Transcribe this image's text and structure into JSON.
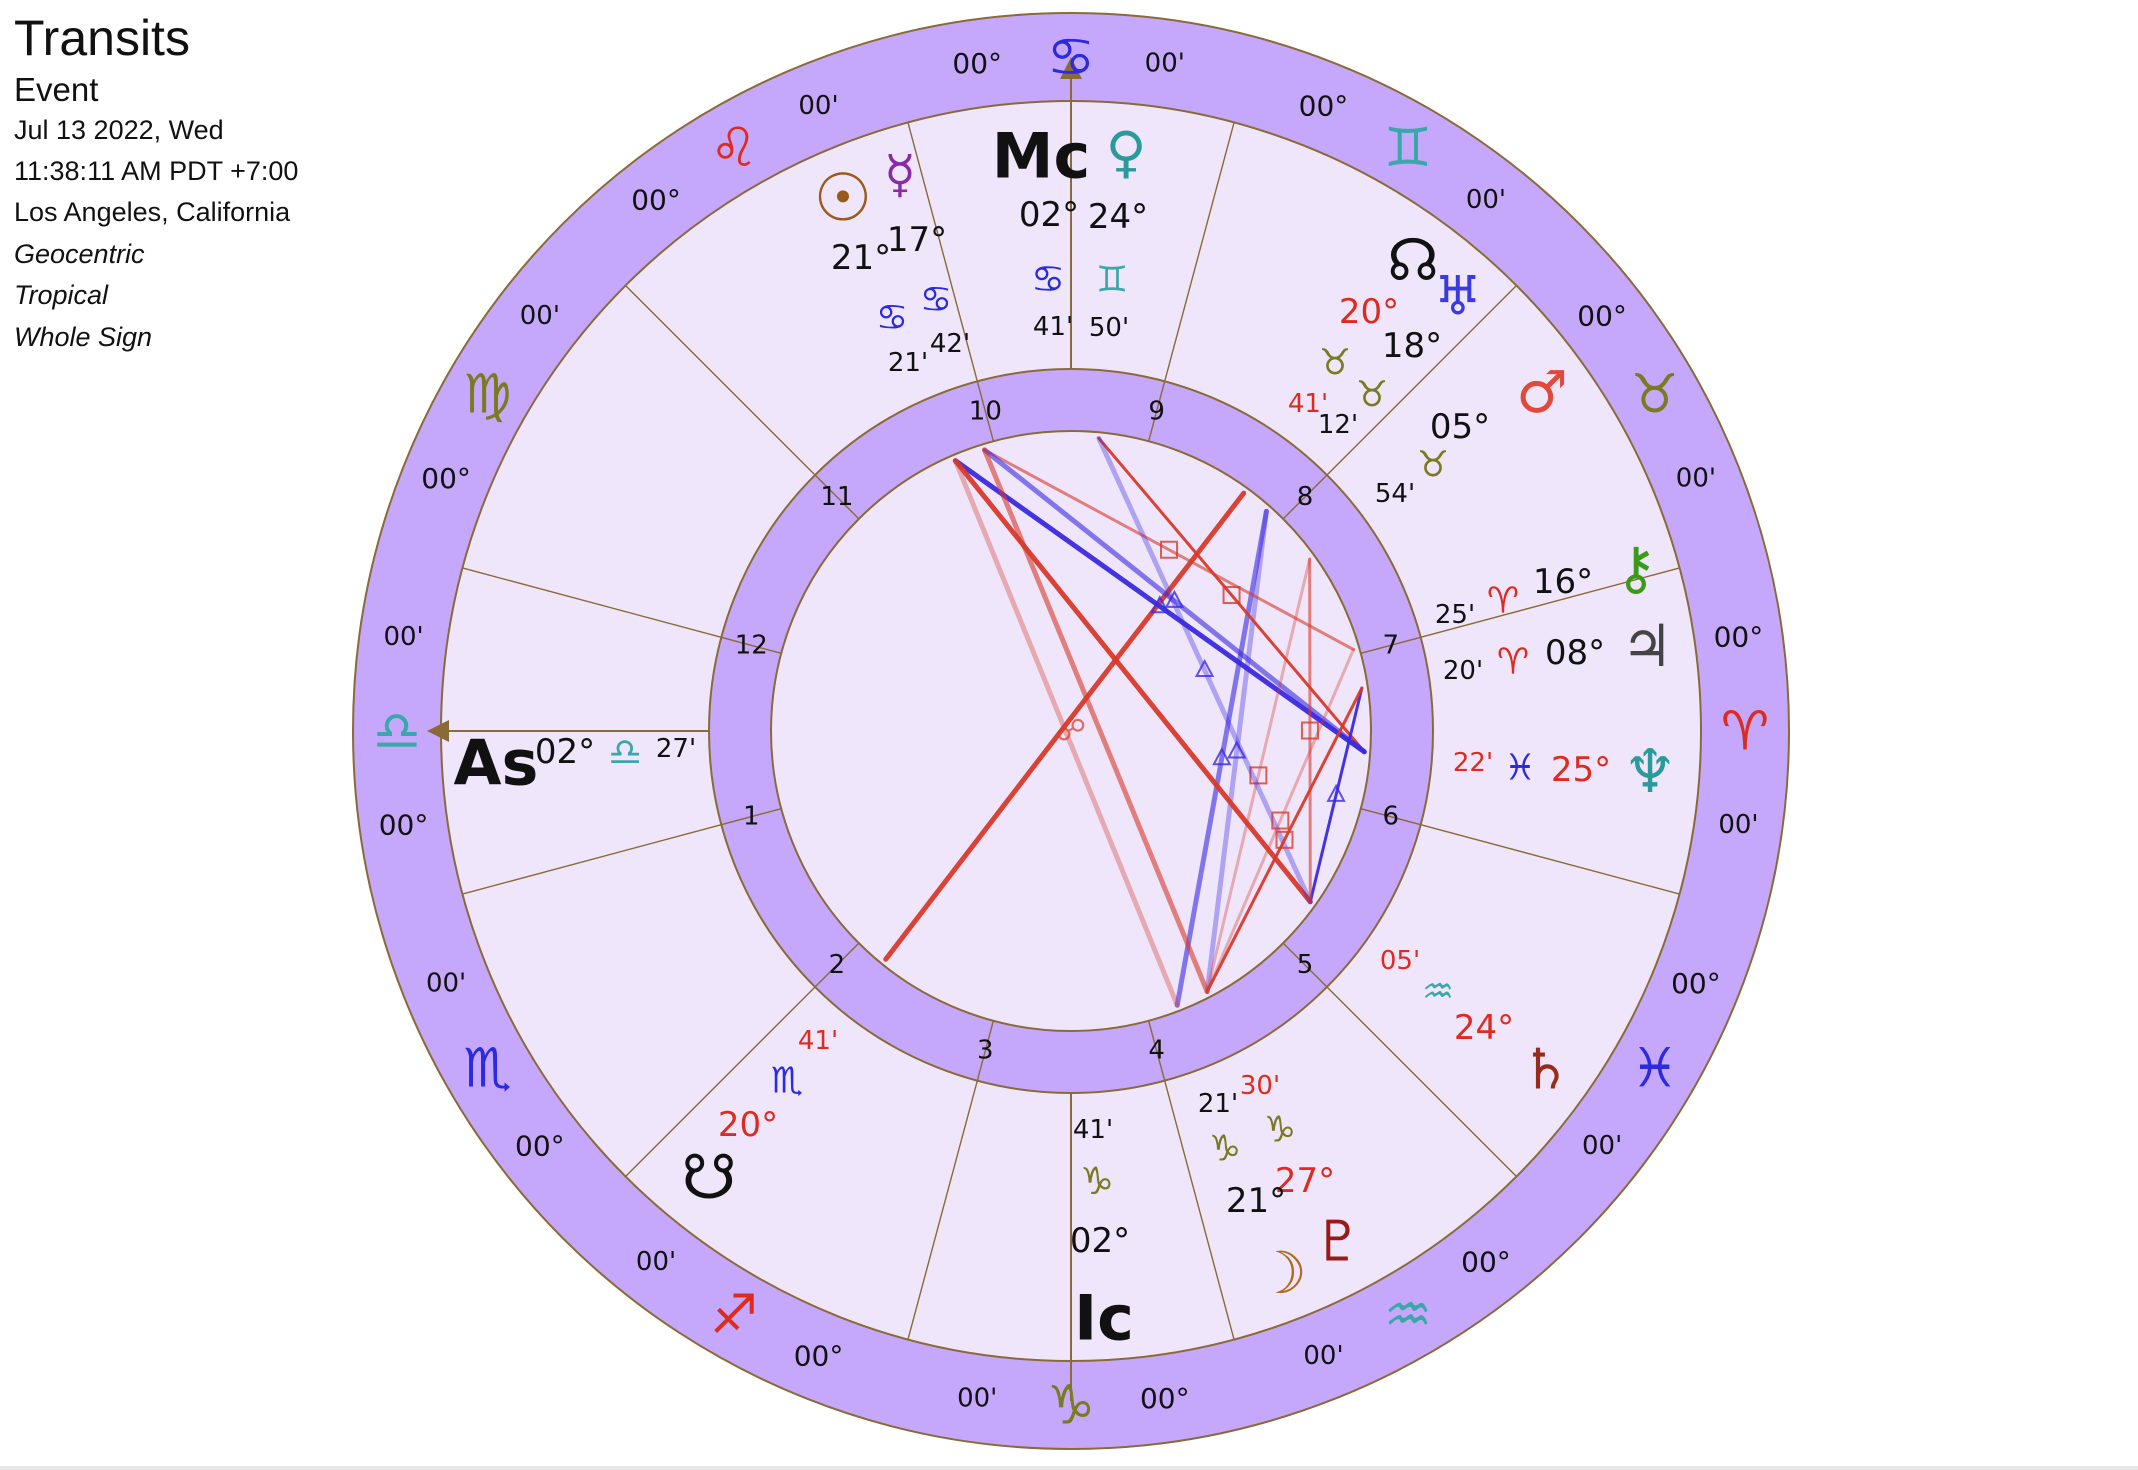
{
  "header": {
    "title": "Transits",
    "subtitle": "Event",
    "date": "Jul 13 2022, Wed",
    "time": "11:38:11 AM PDT +7:00",
    "location": "Los Angeles, California",
    "mode1": "Geocentric",
    "mode2": "Tropical",
    "mode3": "Whole Sign"
  },
  "colors": {
    "ring": "#c5a8fb",
    "inner_fill": "#efe6fb",
    "line": "#8a6a36",
    "aspect_red": "#d83a2a",
    "aspect_blue": "#3a2ae0"
  },
  "zodiac": [
    {
      "sign": "Cancer",
      "glyph": "♋",
      "color": "#2b2bdd",
      "deg": "00°",
      "min": "00'"
    },
    {
      "sign": "Gemini",
      "glyph": "♊",
      "color": "#3aa8a8",
      "deg": "00°",
      "min": "00'"
    },
    {
      "sign": "Taurus",
      "glyph": "♉",
      "color": "#7a7a20",
      "deg": "00°",
      "min": "00'"
    },
    {
      "sign": "Aries",
      "glyph": "♈",
      "color": "#dd2b20",
      "deg": "00°",
      "min": "00'"
    },
    {
      "sign": "Pisces",
      "glyph": "♓",
      "color": "#2b2bdd",
      "deg": "00°",
      "min": "00'"
    },
    {
      "sign": "Aquarius",
      "glyph": "♒",
      "color": "#3aa8a8",
      "deg": "00°",
      "min": "00'"
    },
    {
      "sign": "Capricorn",
      "glyph": "♑",
      "color": "#7a7a20",
      "deg": "00°",
      "min": "00'"
    },
    {
      "sign": "Sagittarius",
      "glyph": "♐",
      "color": "#dd2b20",
      "deg": "00°",
      "min": "00'"
    },
    {
      "sign": "Scorpio",
      "glyph": "♏",
      "color": "#2b2bdd",
      "deg": "00°",
      "min": "00'"
    },
    {
      "sign": "Libra",
      "glyph": "♎",
      "color": "#3aa8a8",
      "deg": "00°",
      "min": "00'"
    },
    {
      "sign": "Virgo",
      "glyph": "♍",
      "color": "#7a7a20",
      "deg": "00°",
      "min": "00'"
    },
    {
      "sign": "Leo",
      "glyph": "♌",
      "color": "#dd2b20",
      "deg": "00°",
      "min": "00'"
    }
  ],
  "houses": [
    "1",
    "2",
    "3",
    "4",
    "5",
    "6",
    "7",
    "8",
    "9",
    "10",
    "11",
    "12"
  ],
  "angles": {
    "as": {
      "label": "As",
      "deg": "02°",
      "sign": "♎",
      "min": "27'"
    },
    "mc": {
      "label": "Mc",
      "deg": "02°",
      "sign": "♋",
      "min": "41'"
    },
    "ic": {
      "label": "Ic",
      "deg": "02°",
      "sign": "♑",
      "min": "41'"
    }
  },
  "planets": [
    {
      "name": "Sun",
      "glyph": "☉",
      "color": "#9a5a1a",
      "deg": "21°",
      "sign": "♋",
      "sign_color": "#2b2bdd",
      "min": "21'"
    },
    {
      "name": "Mercury",
      "glyph": "☿",
      "color": "#8a2aa8",
      "deg": "17°",
      "sign": "♋",
      "sign_color": "#2b2bdd",
      "min": "42'"
    },
    {
      "name": "Venus",
      "glyph": "♀",
      "color": "#2a9a9a",
      "deg": "24°",
      "sign": "♊",
      "sign_color": "#3aa8a8",
      "min": "50'"
    },
    {
      "name": "North Node",
      "glyph": "☊",
      "color": "#111111",
      "deg": "20°",
      "deg_color": "#dd2b20",
      "sign": "♉",
      "sign_color": "#7a7a20",
      "min": "41'",
      "min_color": "#dd2b20"
    },
    {
      "name": "Uranus",
      "glyph": "♅",
      "color": "#3a3ae0",
      "deg": "18°",
      "sign": "♉",
      "sign_color": "#7a7a20",
      "min": "12'"
    },
    {
      "name": "Mars",
      "glyph": "♂",
      "color": "#e04a3a",
      "deg": "05°",
      "sign": "♉",
      "sign_color": "#7a7a20",
      "min": "54'"
    },
    {
      "name": "Chiron",
      "glyph": "⚷",
      "color": "#3a9a1a",
      "deg": "16°",
      "sign": "♈",
      "sign_color": "#dd2b20",
      "min": "25'"
    },
    {
      "name": "Jupiter",
      "glyph": "♃",
      "color": "#444444",
      "deg": "08°",
      "sign": "♈",
      "sign_color": "#dd2b20",
      "min": "20'"
    },
    {
      "name": "Neptune",
      "glyph": "♆",
      "color": "#2a9a9a",
      "deg": "25°",
      "deg_color": "#dd2b20",
      "sign": "♓",
      "sign_color": "#2b2bdd",
      "min": "22'",
      "min_color": "#dd2b20"
    },
    {
      "name": "Saturn",
      "glyph": "♄",
      "color": "#9a2a1a",
      "deg": "24°",
      "deg_color": "#dd2b20",
      "sign": "♒",
      "sign_color": "#3aa8a8",
      "min": "05'",
      "min_color": "#dd2b20"
    },
    {
      "name": "Pluto",
      "glyph": "♇",
      "color": "#9a1a1a",
      "deg": "27°",
      "deg_color": "#dd2b20",
      "sign": "♑",
      "sign_color": "#7a7a20",
      "min": "30'",
      "min_color": "#dd2b20"
    },
    {
      "name": "Moon",
      "glyph": "☽",
      "color": "#b06a1a",
      "deg": "21°",
      "sign": "♑",
      "sign_color": "#7a7a20",
      "min": "21'"
    },
    {
      "name": "South Node",
      "glyph": "☋",
      "color": "#111111",
      "deg": "20°",
      "deg_color": "#dd2b20",
      "sign": "♏",
      "sign_color": "#2b2bdd",
      "min": "41'",
      "min_color": "#dd2b20"
    }
  ],
  "aspects": [
    {
      "from": "North Node",
      "to": "South Node",
      "type": "opposition",
      "color": "red"
    },
    {
      "from": "Uranus",
      "to": "Moon",
      "type": "trine",
      "color": "blue"
    },
    {
      "from": "Uranus",
      "to": "Pluto",
      "type": "trine",
      "color": "blue"
    },
    {
      "from": "Venus",
      "to": "Neptune",
      "type": "square",
      "color": "red"
    },
    {
      "from": "Mercury",
      "to": "Chiron",
      "type": "square",
      "color": "red"
    },
    {
      "from": "Sun",
      "to": "Moon",
      "type": "opposition",
      "color": "red"
    },
    {
      "from": "Sun",
      "to": "Neptune",
      "type": "trine",
      "color": "blue"
    },
    {
      "from": "Mercury",
      "to": "Neptune",
      "type": "trine",
      "color": "blue"
    },
    {
      "from": "Mars",
      "to": "Pluto",
      "type": "square",
      "color": "red"
    },
    {
      "from": "Sun",
      "to": "Saturn",
      "type": "opposition",
      "color": "red"
    },
    {
      "from": "Mercury",
      "to": "Pluto",
      "type": "opposition",
      "color": "red"
    },
    {
      "from": "Venus",
      "to": "Saturn",
      "type": "trine",
      "color": "blue"
    },
    {
      "from": "Jupiter",
      "to": "Saturn",
      "type": "sextile",
      "color": "blue"
    },
    {
      "from": "Mars",
      "to": "Saturn",
      "type": "square",
      "color": "red"
    },
    {
      "from": "Chiron",
      "to": "Pluto",
      "type": "square",
      "color": "red"
    },
    {
      "from": "Jupiter",
      "to": "Pluto",
      "type": "square",
      "color": "red"
    }
  ]
}
